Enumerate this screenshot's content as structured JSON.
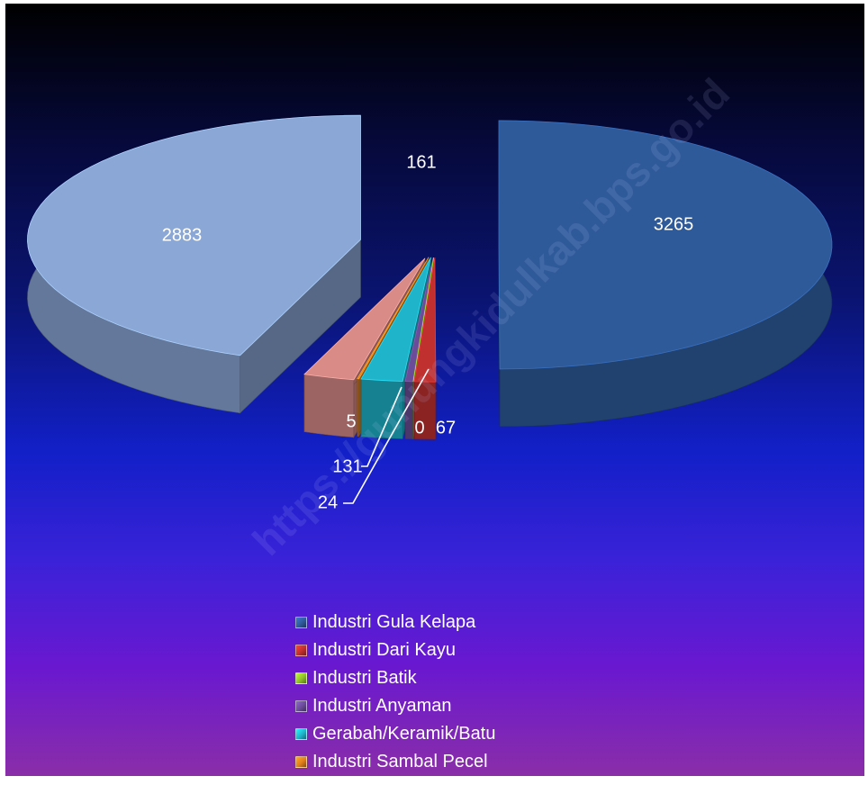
{
  "chart_data": {
    "type": "pie",
    "title": "",
    "categories": [
      "Industri Gula Kelapa",
      "Industri Dari Kayu",
      "Industri Batik",
      "Industri Anyaman",
      "Gerabah/Keramik/Batu",
      "Industri Sambal Pecel",
      "",
      ""
    ],
    "values": [
      3265,
      67,
      0,
      24,
      131,
      5,
      161,
      2883
    ],
    "colors": [
      "#2e5a9a",
      "#c0302e",
      "#8fbf2a",
      "#6a4c98",
      "#1fb4c9",
      "#e07f1c",
      "#d98b88",
      "#8aa7d6"
    ],
    "data_labels": [
      "3265",
      "67",
      "0",
      "24",
      "131",
      "5",
      "161",
      "2883"
    ],
    "legend_position": "bottom",
    "exploded": true,
    "three_d": true
  },
  "watermark": "https://gunungkidulkab.bps.go.id"
}
